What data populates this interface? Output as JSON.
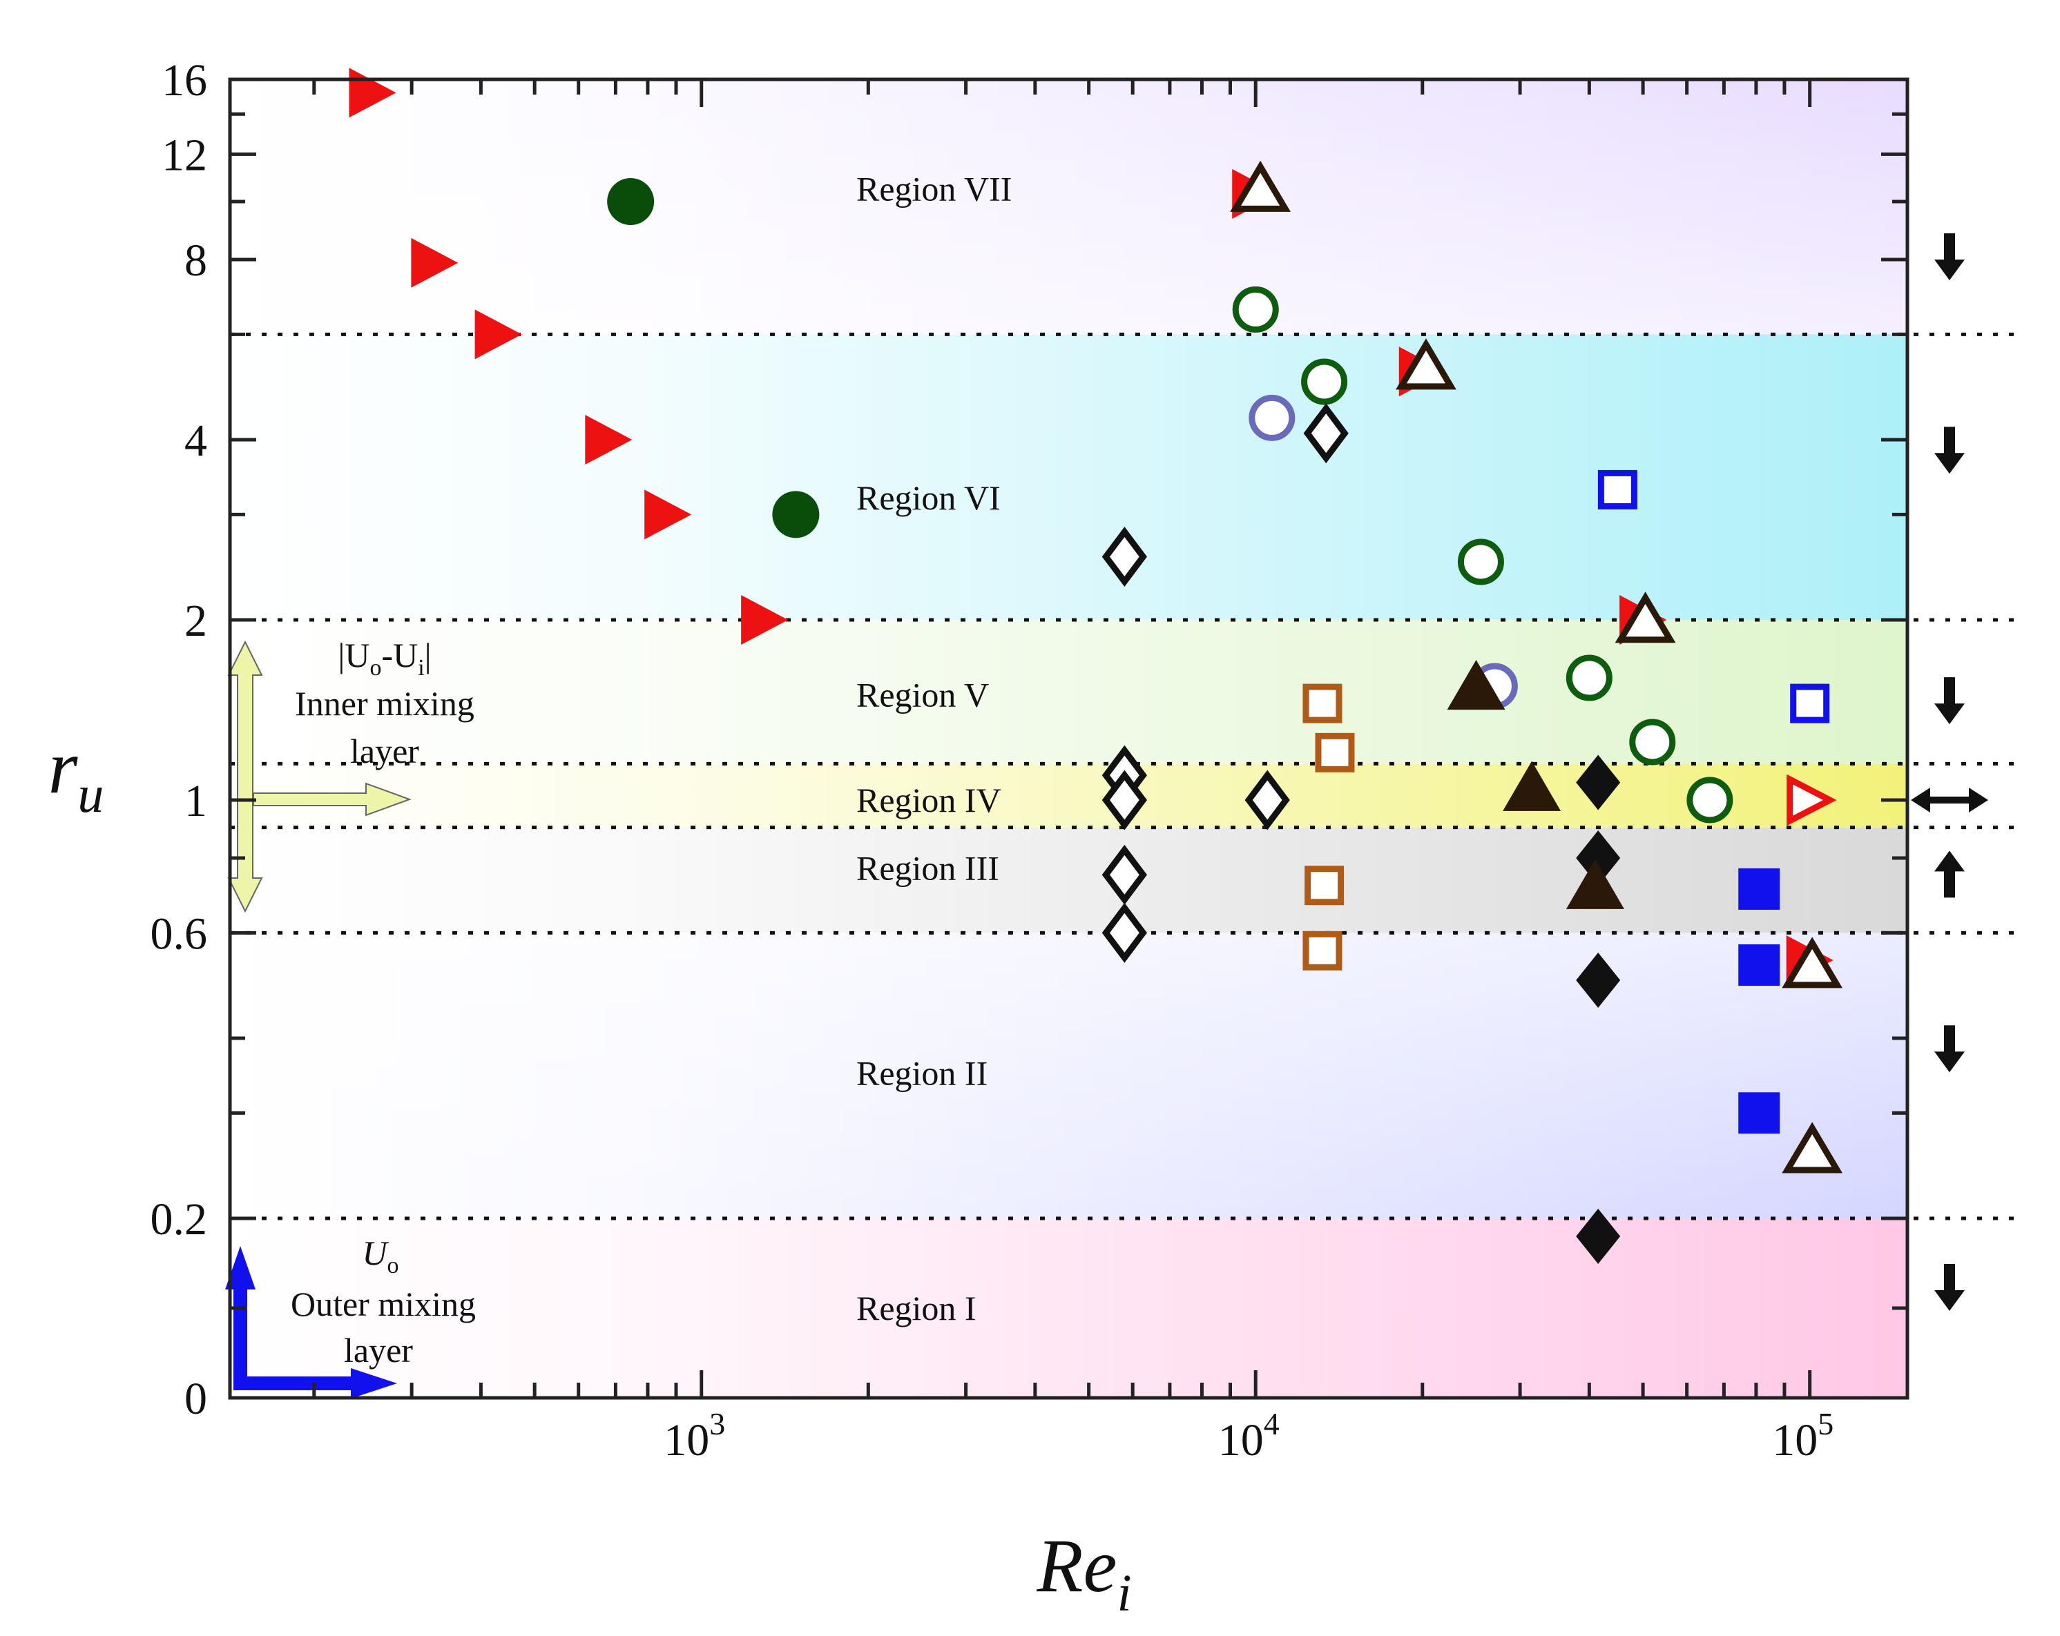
{
  "chart_data": {
    "type": "scatter",
    "title": "",
    "xlabel": "Re",
    "xlabel_sub": "i",
    "ylabel": "r",
    "ylabel_sub": "u",
    "xscale": "log",
    "xlim": [
      141,
      150000
    ],
    "y_segments": [
      {
        "type": "linear",
        "range": [
          0,
          0.2
        ]
      },
      {
        "type": "log",
        "range": [
          0.2,
          16
        ]
      }
    ],
    "x_ticks": [
      {
        "value": 1000,
        "base": "10",
        "exp": "3"
      },
      {
        "value": 10000,
        "base": "10",
        "exp": "4"
      },
      {
        "value": 100000,
        "base": "10",
        "exp": "5"
      }
    ],
    "y_ticks": [
      {
        "value": 0,
        "label": "0"
      },
      {
        "value": 0.2,
        "label": "0.2"
      },
      {
        "value": 0.6,
        "label": "0.6"
      },
      {
        "value": 1,
        "label": "1"
      },
      {
        "value": 2,
        "label": "2"
      },
      {
        "value": 4,
        "label": "4"
      },
      {
        "value": 8,
        "label": "8"
      },
      {
        "value": 12,
        "label": "12"
      },
      {
        "value": 16,
        "label": "16"
      }
    ],
    "region_boundaries": [
      0.2,
      0.6,
      0.9,
      1.15,
      2,
      6
    ],
    "regions": [
      {
        "label": "Region I",
        "range": [
          0,
          0.2
        ],
        "label_y": 0.1,
        "color": "#ffc8e6",
        "trend": "down"
      },
      {
        "label": "Region II",
        "range": [
          0.2,
          0.6
        ],
        "label_y": 0.35,
        "color": "#d4d6ff",
        "trend": "down"
      },
      {
        "label": "Region III",
        "range": [
          0.6,
          0.9
        ],
        "label_y": 0.77,
        "color": "#d9d9d9",
        "trend": "up"
      },
      {
        "label": "Region IV",
        "range": [
          0.9,
          1.15
        ],
        "label_y": 1.0,
        "color": "#f2f27a",
        "trend": "both"
      },
      {
        "label": "Region V",
        "range": [
          1.15,
          2
        ],
        "label_y": 1.5,
        "color": "#dff5cc",
        "trend": "down"
      },
      {
        "label": "Region VI",
        "range": [
          2,
          6
        ],
        "label_y": 3.2,
        "color": "#aef0f8",
        "trend": "down"
      },
      {
        "label": "Region VII",
        "range": [
          6,
          16
        ],
        "label_y": 10.5,
        "color": "#e8dcff",
        "trend": "down"
      }
    ],
    "annotations": {
      "inner": {
        "line1_a": "|U",
        "line1_b": "o",
        "line1_c": "-U",
        "line1_d": "i",
        "line1_e": "|",
        "line2": "Inner mixing",
        "line3": "layer",
        "arrow_color": "#eef5a8"
      },
      "outer": {
        "line1_a": "U",
        "line1_b": "o",
        "line2": "Outer mixing",
        "line3": "layer",
        "arrow_color": "#1111ee"
      }
    },
    "series": [
      {
        "name": "red-filled-triangle",
        "marker": "triangle-right",
        "filled": true,
        "color": "#ee1111",
        "points": [
          [
            255,
            15.2
          ],
          [
            330,
            7.9
          ],
          [
            430,
            6.0
          ],
          [
            680,
            4.0
          ],
          [
            870,
            3.0
          ],
          [
            1300,
            2.0
          ],
          [
            10000,
            10.3
          ],
          [
            20000,
            5.2
          ],
          [
            50000,
            2.0
          ],
          [
            100000,
            0.54
          ]
        ]
      },
      {
        "name": "dark-green-filled-circle",
        "marker": "circle",
        "filled": true,
        "color": "#0a4d0a",
        "points": [
          [
            745,
            10.0
          ],
          [
            1480,
            3.0
          ]
        ]
      },
      {
        "name": "green-open-circle",
        "marker": "circle",
        "filled": false,
        "color": "#0e5c0e",
        "points": [
          [
            10000,
            6.6
          ],
          [
            13300,
            5.0
          ],
          [
            25500,
            2.5
          ],
          [
            40000,
            1.6
          ],
          [
            52000,
            1.25
          ],
          [
            66000,
            1.0
          ]
        ]
      },
      {
        "name": "periwinkle-open-circle",
        "marker": "circle",
        "filled": false,
        "color": "#6a6aba",
        "points": [
          [
            10700,
            4.35
          ],
          [
            27000,
            1.55
          ]
        ]
      },
      {
        "name": "black-open-diamond",
        "marker": "diamond",
        "filled": false,
        "color": "#111111",
        "points": [
          [
            5800,
            2.55
          ],
          [
            13400,
            4.1
          ],
          [
            5800,
            1.1
          ],
          [
            5800,
            1.0
          ],
          [
            10500,
            1.0
          ],
          [
            5800,
            0.75
          ],
          [
            5800,
            0.6
          ]
        ]
      },
      {
        "name": "black-filled-diamond",
        "marker": "diamond",
        "filled": true,
        "color": "#111111",
        "points": [
          [
            41500,
            1.07
          ],
          [
            41500,
            0.8
          ],
          [
            41500,
            0.5
          ],
          [
            41500,
            0.18
          ]
        ]
      },
      {
        "name": "brown-open-square",
        "marker": "square",
        "filled": false,
        "color": "#b05a18",
        "points": [
          [
            13200,
            1.45
          ],
          [
            13900,
            1.2
          ],
          [
            13300,
            0.72
          ],
          [
            13200,
            0.56
          ]
        ]
      },
      {
        "name": "blue-open-square",
        "marker": "square",
        "filled": false,
        "color": "#1111ee",
        "points": [
          [
            45000,
            3.3
          ],
          [
            100000,
            1.45
          ]
        ]
      },
      {
        "name": "blue-filled-square",
        "marker": "square",
        "filled": true,
        "color": "#1111ee",
        "points": [
          [
            81000,
            0.71
          ],
          [
            81000,
            0.53
          ],
          [
            81000,
            0.3
          ]
        ]
      },
      {
        "name": "brown-open-triangle",
        "marker": "triangle-up",
        "filled": false,
        "color": "#2a1808",
        "points": [
          [
            10200,
            10.5
          ],
          [
            20300,
            5.3
          ],
          [
            50500,
            2.0
          ],
          [
            101000,
            0.53
          ],
          [
            101000,
            0.26
          ]
        ]
      },
      {
        "name": "brown-filled-triangle",
        "marker": "triangle-up",
        "filled": true,
        "color": "#2a1808",
        "points": [
          [
            25000,
            1.55
          ],
          [
            31500,
            1.05
          ],
          [
            41000,
            0.72
          ]
        ]
      },
      {
        "name": "red-open-triangle",
        "marker": "triangle-right",
        "filled": false,
        "color": "#ee1111",
        "points": [
          [
            100000,
            1.0
          ]
        ]
      }
    ]
  }
}
